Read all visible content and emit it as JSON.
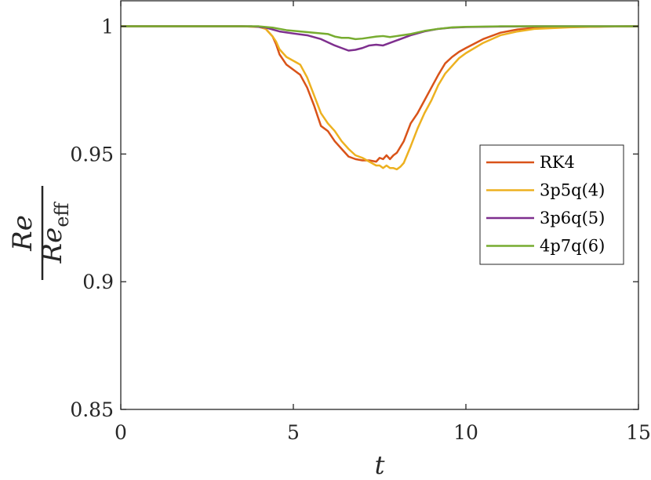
{
  "chart_data": {
    "type": "line",
    "xlabel": "t",
    "ylabel": {
      "numerator": "Re",
      "numerator_subscript": "eff",
      "denominator": "Re"
    },
    "xlim": [
      0,
      15
    ],
    "ylim": [
      0.85,
      1.01
    ],
    "xticks": [
      0,
      5,
      10,
      15
    ],
    "xtick_labels": [
      "0",
      "5",
      "10",
      "15"
    ],
    "yticks": [
      0.85,
      0.9,
      0.95,
      1
    ],
    "ytick_labels": [
      "0.85",
      "0.9",
      "0.95",
      "1"
    ],
    "grid": false,
    "legend_position": "right",
    "series": [
      {
        "name": "RK4",
        "color": "#D95319",
        "x": [
          0,
          3.5,
          4.0,
          4.2,
          4.4,
          4.5,
          4.6,
          4.8,
          5.0,
          5.2,
          5.4,
          5.6,
          5.8,
          6.0,
          6.2,
          6.4,
          6.6,
          6.8,
          7.0,
          7.2,
          7.4,
          7.5,
          7.6,
          7.7,
          7.8,
          7.9,
          8.0,
          8.2,
          8.4,
          8.6,
          8.8,
          9.0,
          9.2,
          9.4,
          9.6,
          9.8,
          10.0,
          10.5,
          11.0,
          11.5,
          12.0,
          13.0,
          14.0,
          15.0
        ],
        "y": [
          1.0,
          1.0,
          0.9998,
          0.999,
          0.996,
          0.993,
          0.989,
          0.985,
          0.983,
          0.981,
          0.976,
          0.969,
          0.961,
          0.959,
          0.955,
          0.952,
          0.949,
          0.948,
          0.9475,
          0.9475,
          0.947,
          0.9485,
          0.948,
          0.9495,
          0.948,
          0.9495,
          0.9505,
          0.955,
          0.962,
          0.966,
          0.971,
          0.976,
          0.981,
          0.9855,
          0.988,
          0.99,
          0.9915,
          0.995,
          0.9975,
          0.9988,
          0.9994,
          0.9998,
          0.9999,
          1.0
        ]
      },
      {
        "name": "3p5q(4)",
        "color": "#EDB120",
        "x": [
          0,
          3.5,
          4.0,
          4.2,
          4.4,
          4.5,
          4.6,
          4.8,
          5.0,
          5.2,
          5.4,
          5.6,
          5.8,
          6.0,
          6.2,
          6.4,
          6.6,
          6.8,
          7.0,
          7.2,
          7.4,
          7.5,
          7.6,
          7.7,
          7.8,
          7.9,
          8.0,
          8.1,
          8.2,
          8.4,
          8.6,
          8.8,
          9.0,
          9.2,
          9.4,
          9.6,
          9.8,
          10.0,
          10.5,
          11.0,
          11.5,
          12.0,
          13.0,
          14.0,
          15.0
        ],
        "y": [
          1.0,
          1.0,
          0.9998,
          0.999,
          0.996,
          0.994,
          0.991,
          0.988,
          0.9865,
          0.985,
          0.98,
          0.973,
          0.966,
          0.962,
          0.959,
          0.955,
          0.952,
          0.9495,
          0.9485,
          0.947,
          0.9455,
          0.9455,
          0.9445,
          0.9455,
          0.9445,
          0.9445,
          0.944,
          0.945,
          0.9465,
          0.953,
          0.96,
          0.966,
          0.971,
          0.977,
          0.9815,
          0.9845,
          0.9875,
          0.9895,
          0.9935,
          0.9965,
          0.998,
          0.999,
          0.9996,
          0.9999,
          1.0
        ]
      },
      {
        "name": "3p6q(5)",
        "color": "#7E2F8E",
        "x": [
          0,
          3.8,
          4.2,
          4.6,
          5.0,
          5.4,
          5.8,
          6.2,
          6.4,
          6.6,
          6.8,
          7.0,
          7.2,
          7.4,
          7.6,
          7.8,
          8.0,
          8.4,
          8.8,
          9.2,
          9.6,
          10.0,
          11.0,
          12.0,
          15.0
        ],
        "y": [
          1.0,
          1.0,
          0.9995,
          0.998,
          0.9972,
          0.9965,
          0.995,
          0.9925,
          0.9915,
          0.9905,
          0.9908,
          0.9915,
          0.9925,
          0.9928,
          0.9925,
          0.9935,
          0.9945,
          0.9965,
          0.998,
          0.999,
          0.9995,
          0.9997,
          0.9999,
          1.0,
          1.0
        ]
      },
      {
        "name": "4p7q(6)",
        "color": "#77AC30",
        "x": [
          0,
          4.0,
          4.4,
          4.8,
          5.2,
          5.6,
          6.0,
          6.2,
          6.4,
          6.6,
          6.8,
          7.0,
          7.4,
          7.6,
          7.8,
          8.0,
          8.4,
          8.8,
          9.2,
          9.6,
          10.0,
          11.0,
          15.0
        ],
        "y": [
          1.0,
          1.0,
          0.9995,
          0.9985,
          0.998,
          0.9975,
          0.997,
          0.996,
          0.9955,
          0.9955,
          0.995,
          0.9952,
          0.996,
          0.9962,
          0.9958,
          0.9962,
          0.997,
          0.9982,
          0.999,
          0.9996,
          0.9998,
          1.0,
          1.0
        ]
      }
    ]
  }
}
